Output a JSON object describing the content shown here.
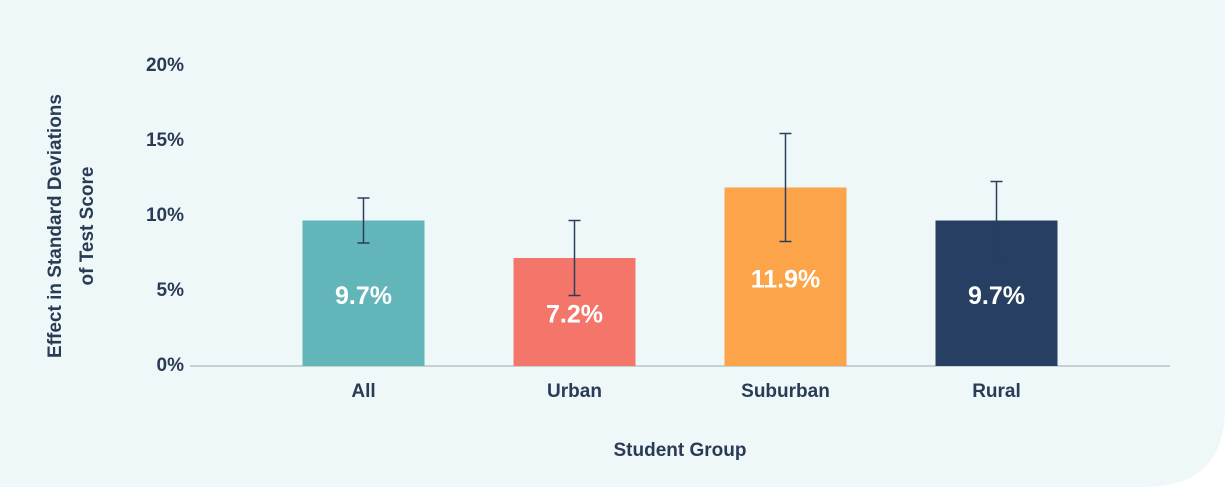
{
  "chart_data": {
    "type": "bar",
    "categories": [
      "All",
      "Urban",
      "Suburban",
      "Rural"
    ],
    "values": [
      9.7,
      7.2,
      11.9,
      9.7
    ],
    "value_labels": [
      "9.7%",
      "7.2%",
      "11.9%",
      "9.7%"
    ],
    "errors": [
      1.5,
      2.5,
      3.6,
      2.6
    ],
    "colors": [
      "#62b5b8",
      "#f4766b",
      "#fba44a",
      "#263f63"
    ],
    "error_color": "#2d3e5c",
    "ylim": [
      0,
      20
    ],
    "yticks": [
      {
        "value": 0,
        "label": "0%"
      },
      {
        "value": 5,
        "label": "5%"
      },
      {
        "value": 10,
        "label": "10%"
      },
      {
        "value": 15,
        "label": "15%"
      },
      {
        "value": 20,
        "label": "20%"
      }
    ],
    "x_label": "Student Group",
    "y_label": [
      "Effect in Standard Deviations",
      "of Test Score"
    ],
    "grid": false
  }
}
